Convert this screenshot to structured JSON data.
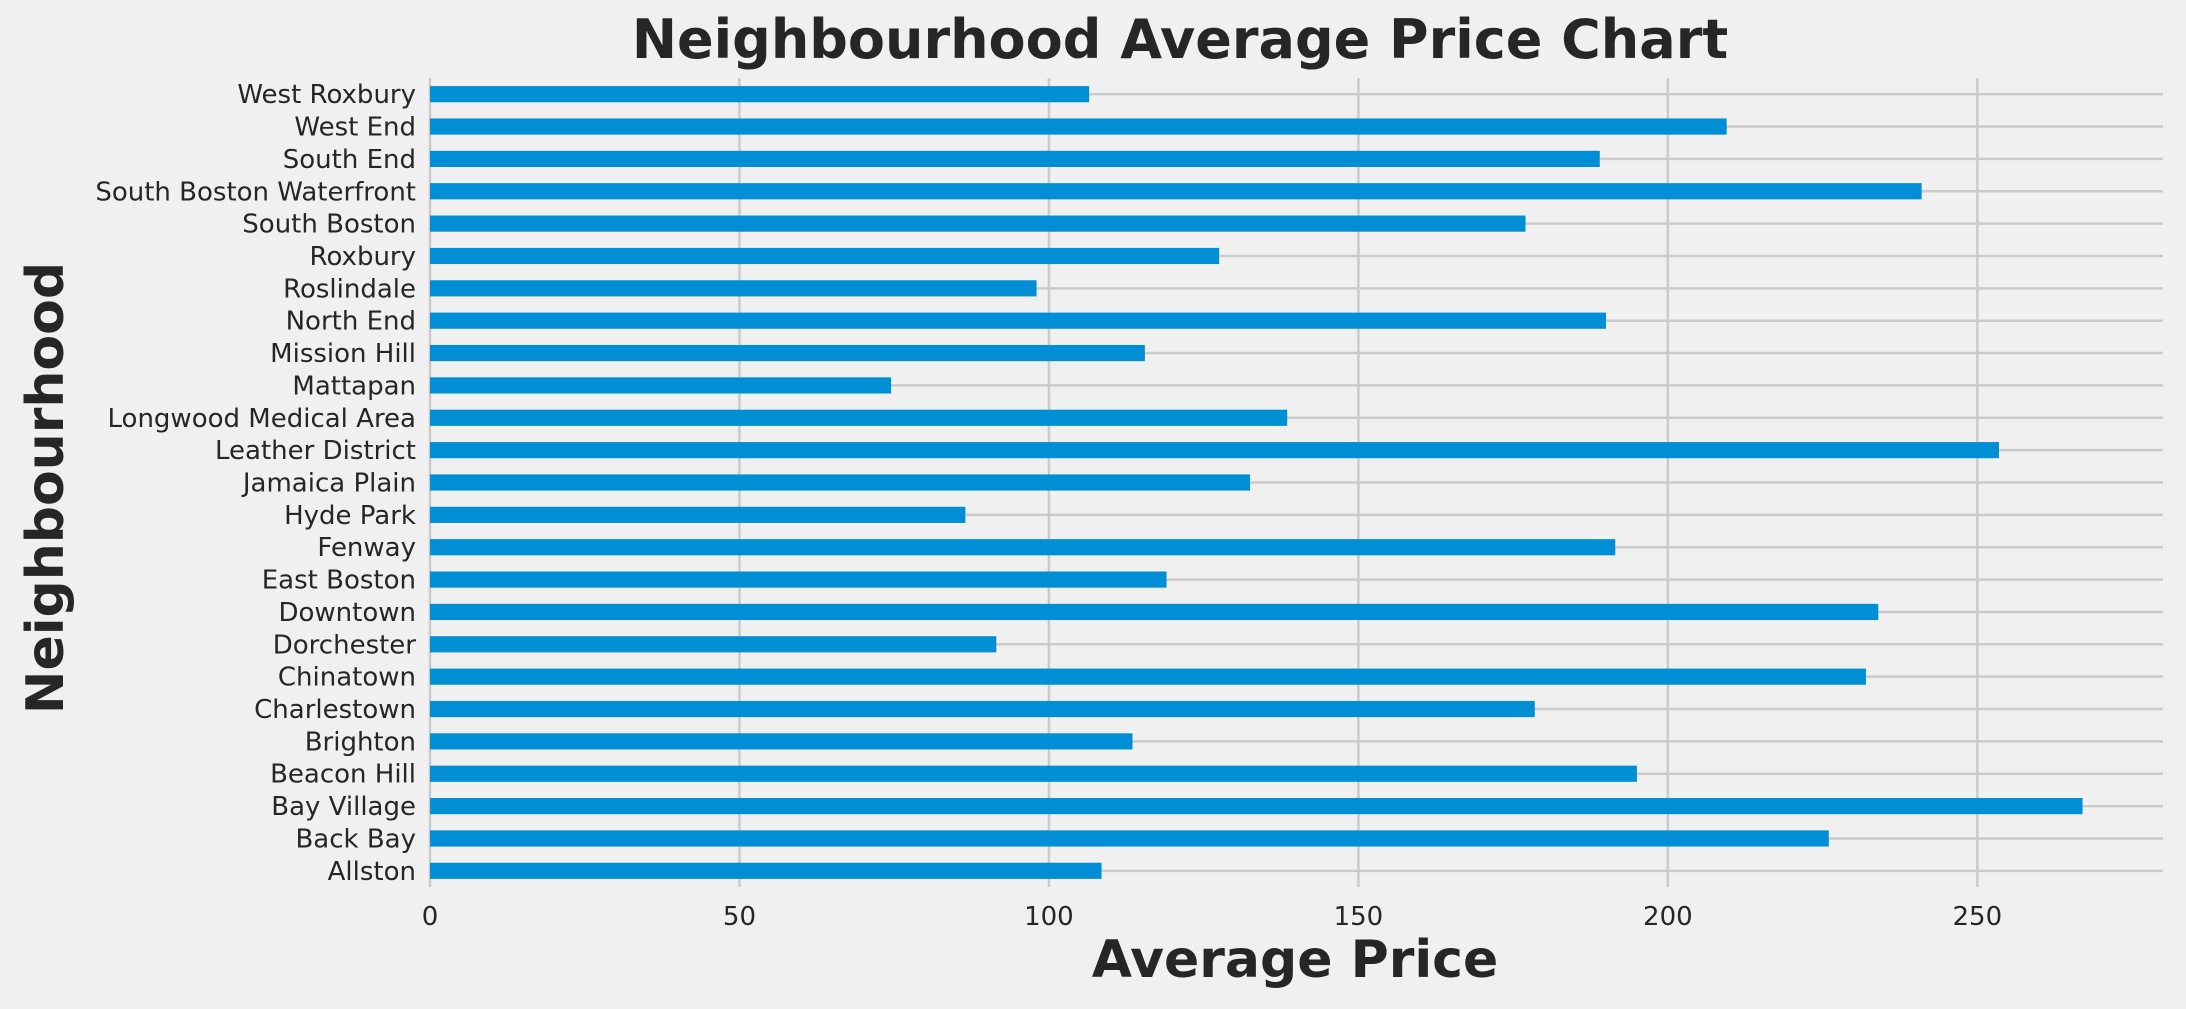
{
  "chart_data": {
    "type": "bar",
    "orientation": "horizontal",
    "title": "Neighbourhood Average Price Chart",
    "xlabel": "Average Price",
    "ylabel": "Neighbourhood",
    "xlim": [
      0,
      280
    ],
    "x_ticks": [
      0,
      50,
      100,
      150,
      200,
      250
    ],
    "grid": true,
    "bar_color": "#008fd5",
    "background": "#f0f0f0",
    "categories": [
      "Allston",
      "Back Bay",
      "Bay Village",
      "Beacon Hill",
      "Brighton",
      "Charlestown",
      "Chinatown",
      "Dorchester",
      "Downtown",
      "East Boston",
      "Fenway",
      "Hyde Park",
      "Jamaica Plain",
      "Leather District",
      "Longwood Medical Area",
      "Mattapan",
      "Mission Hill",
      "North End",
      "Roslindale",
      "Roxbury",
      "South Boston",
      "South Boston Waterfront",
      "South End",
      "West End",
      "West Roxbury"
    ],
    "values": [
      108.5,
      226,
      267,
      195,
      113.5,
      178.5,
      232,
      91.5,
      234,
      119,
      191.5,
      86.5,
      132.5,
      253.5,
      138.5,
      74.5,
      115.5,
      190,
      98,
      127.5,
      177,
      241,
      189,
      209.5,
      106.5
    ]
  }
}
